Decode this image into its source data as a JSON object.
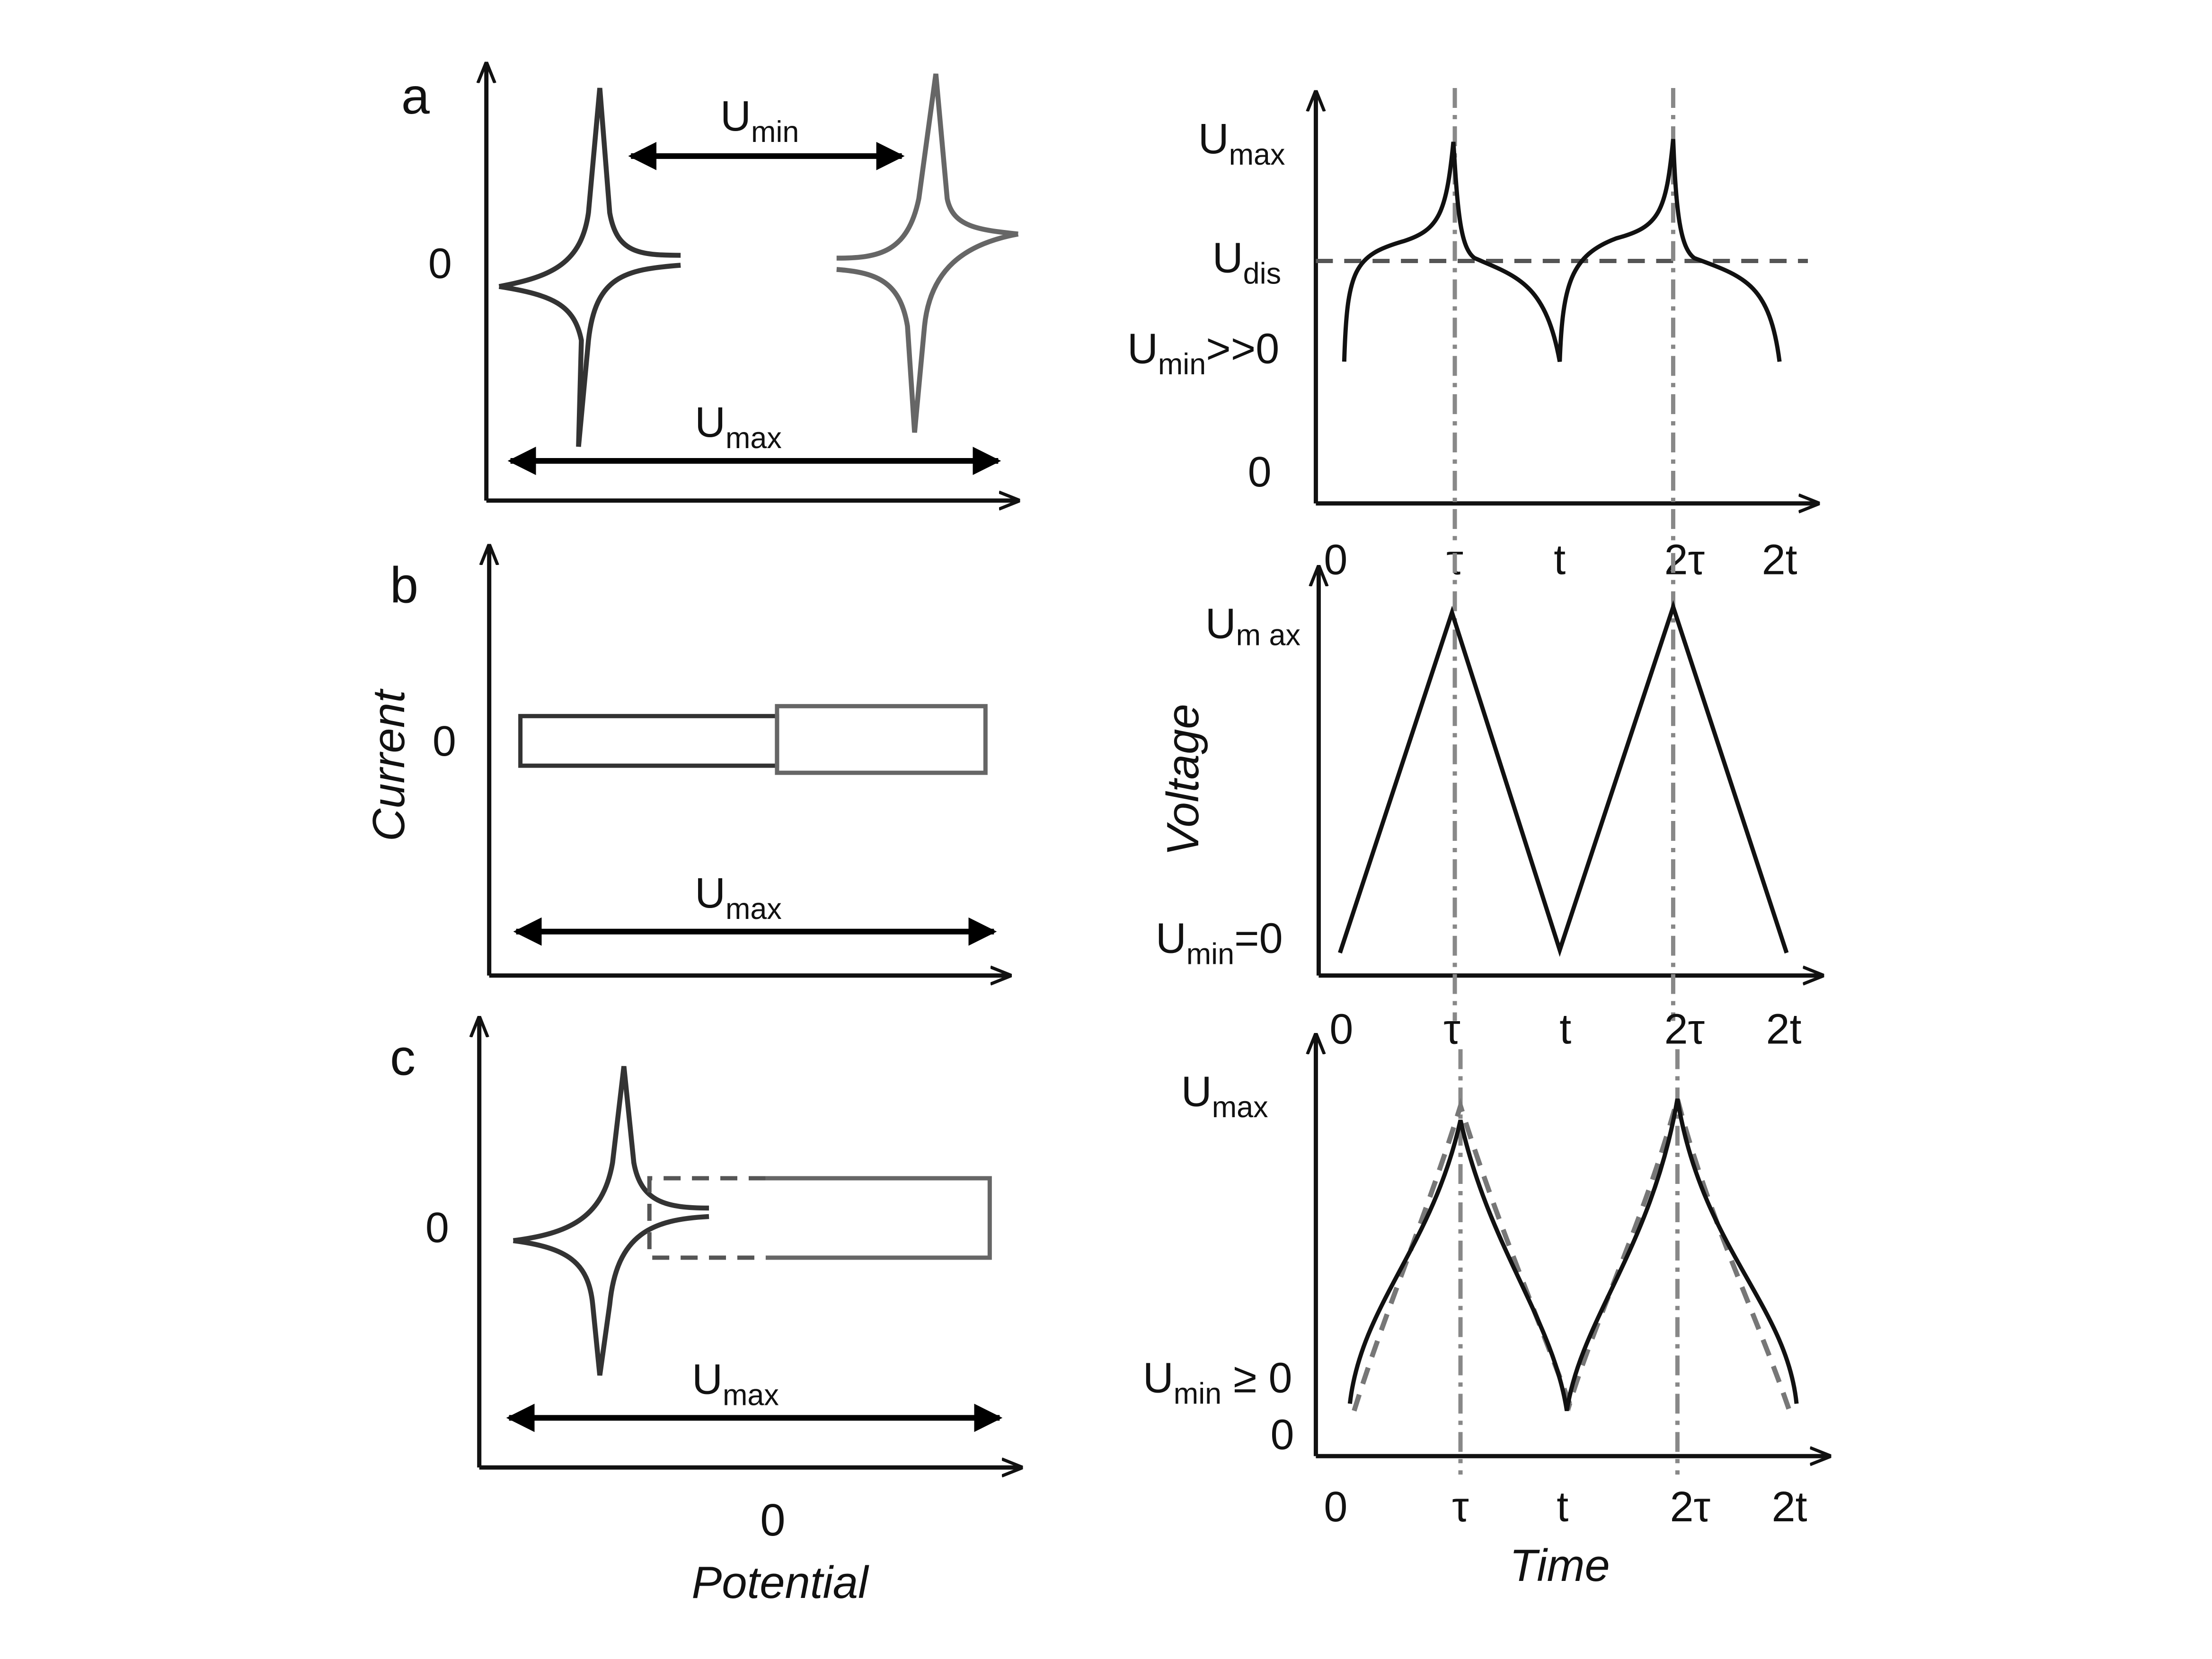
{
  "panels": [
    {
      "label": "a",
      "left": {
        "zero": "0",
        "u_min": {
          "U": "U",
          "sub": "min"
        },
        "u_max": {
          "U": "U",
          "sub": "max"
        }
      },
      "right": {
        "u_max": {
          "U": "U",
          "sub": "max"
        },
        "u_dis": {
          "U": "U",
          "sub": "dis"
        },
        "u_min": {
          "U": "U",
          "sub": "min",
          "suffix": ">>0"
        },
        "zero": "0",
        "time_ticks": [
          "0",
          "τ",
          "t",
          "2τ",
          "2t"
        ]
      }
    },
    {
      "label": "b",
      "left": {
        "zero": "0",
        "u_max": {
          "U": "U",
          "sub": "max"
        }
      },
      "right": {
        "u_max": {
          "U": "U",
          "sub": "m ax"
        },
        "u_min": {
          "U": "U",
          "sub": "min",
          "suffix": "=0"
        },
        "time_ticks": [
          "0",
          "τ",
          "t",
          "2τ",
          "2t"
        ]
      }
    },
    {
      "label": "c",
      "left": {
        "zero": "0",
        "u_max": {
          "U": "U",
          "sub": "max"
        }
      },
      "right": {
        "u_max": {
          "U": "U",
          "sub": "max"
        },
        "u_min": {
          "U": "U",
          "sub": "min",
          "suffix": " ≥ 0"
        },
        "zero": "0",
        "time_ticks": [
          "0",
          "τ",
          "t",
          "2τ",
          "2t"
        ]
      }
    }
  ],
  "axis_labels": {
    "current": "Current",
    "potential": "Potential",
    "potential_zero": "0",
    "voltage": "Voltage",
    "time": "Time"
  }
}
